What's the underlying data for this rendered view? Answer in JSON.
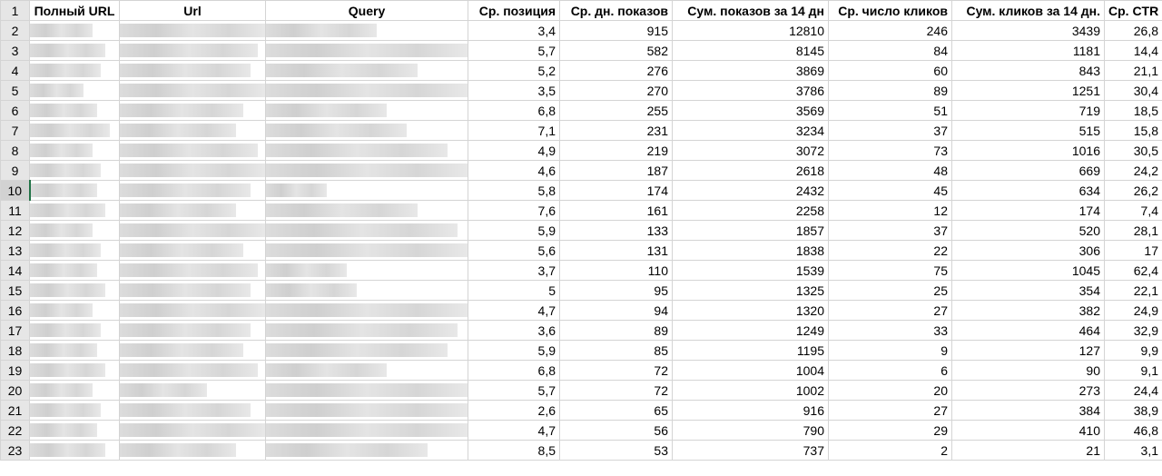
{
  "headers": {
    "row": "1",
    "full_url": "Полный URL",
    "url": "Url",
    "query": "Query",
    "avg_position": "Ср. позиция",
    "avg_daily_impressions": "Ср. дн. показов",
    "sum_impressions_14d": "Сум. показов за 14 дн",
    "avg_clicks": "Ср. число кликов",
    "sum_clicks_14d": "Сум. кликов за 14 дн.",
    "avg_ctr": "Ср. CTR"
  },
  "rows": [
    {
      "n": "2",
      "pos": "3,4",
      "imp": "915",
      "sum_imp": "12810",
      "clicks": "246",
      "sum_clicks": "3439",
      "ctr": "26,8"
    },
    {
      "n": "3",
      "pos": "5,7",
      "imp": "582",
      "sum_imp": "8145",
      "clicks": "84",
      "sum_clicks": "1181",
      "ctr": "14,4"
    },
    {
      "n": "4",
      "pos": "5,2",
      "imp": "276",
      "sum_imp": "3869",
      "clicks": "60",
      "sum_clicks": "843",
      "ctr": "21,1"
    },
    {
      "n": "5",
      "pos": "3,5",
      "imp": "270",
      "sum_imp": "3786",
      "clicks": "89",
      "sum_clicks": "1251",
      "ctr": "30,4"
    },
    {
      "n": "6",
      "pos": "6,8",
      "imp": "255",
      "sum_imp": "3569",
      "clicks": "51",
      "sum_clicks": "719",
      "ctr": "18,5"
    },
    {
      "n": "7",
      "pos": "7,1",
      "imp": "231",
      "sum_imp": "3234",
      "clicks": "37",
      "sum_clicks": "515",
      "ctr": "15,8"
    },
    {
      "n": "8",
      "pos": "4,9",
      "imp": "219",
      "sum_imp": "3072",
      "clicks": "73",
      "sum_clicks": "1016",
      "ctr": "30,5"
    },
    {
      "n": "9",
      "pos": "4,6",
      "imp": "187",
      "sum_imp": "2618",
      "clicks": "48",
      "sum_clicks": "669",
      "ctr": "24,2"
    },
    {
      "n": "10",
      "pos": "5,8",
      "imp": "174",
      "sum_imp": "2432",
      "clicks": "45",
      "sum_clicks": "634",
      "ctr": "26,2"
    },
    {
      "n": "11",
      "pos": "7,6",
      "imp": "161",
      "sum_imp": "2258",
      "clicks": "12",
      "sum_clicks": "174",
      "ctr": "7,4"
    },
    {
      "n": "12",
      "pos": "5,9",
      "imp": "133",
      "sum_imp": "1857",
      "clicks": "37",
      "sum_clicks": "520",
      "ctr": "28,1"
    },
    {
      "n": "13",
      "pos": "5,6",
      "imp": "131",
      "sum_imp": "1838",
      "clicks": "22",
      "sum_clicks": "306",
      "ctr": "17"
    },
    {
      "n": "14",
      "pos": "3,7",
      "imp": "110",
      "sum_imp": "1539",
      "clicks": "75",
      "sum_clicks": "1045",
      "ctr": "62,4"
    },
    {
      "n": "15",
      "pos": "5",
      "imp": "95",
      "sum_imp": "1325",
      "clicks": "25",
      "sum_clicks": "354",
      "ctr": "22,1"
    },
    {
      "n": "16",
      "pos": "4,7",
      "imp": "94",
      "sum_imp": "1320",
      "clicks": "27",
      "sum_clicks": "382",
      "ctr": "24,9"
    },
    {
      "n": "17",
      "pos": "3,6",
      "imp": "89",
      "sum_imp": "1249",
      "clicks": "33",
      "sum_clicks": "464",
      "ctr": "32,9"
    },
    {
      "n": "18",
      "pos": "5,9",
      "imp": "85",
      "sum_imp": "1195",
      "clicks": "9",
      "sum_clicks": "127",
      "ctr": "9,9"
    },
    {
      "n": "19",
      "pos": "6,8",
      "imp": "72",
      "sum_imp": "1004",
      "clicks": "6",
      "sum_clicks": "90",
      "ctr": "9,1"
    },
    {
      "n": "20",
      "pos": "5,7",
      "imp": "72",
      "sum_imp": "1002",
      "clicks": "20",
      "sum_clicks": "273",
      "ctr": "24,4"
    },
    {
      "n": "21",
      "pos": "2,6",
      "imp": "65",
      "sum_imp": "916",
      "clicks": "27",
      "sum_clicks": "384",
      "ctr": "38,9"
    },
    {
      "n": "22",
      "pos": "4,7",
      "imp": "56",
      "sum_imp": "790",
      "clicks": "29",
      "sum_clicks": "410",
      "ctr": "46,8"
    },
    {
      "n": "23",
      "pos": "8,5",
      "imp": "53",
      "sum_imp": "737",
      "clicks": "2",
      "sum_clicks": "21",
      "ctr": "3,1"
    }
  ],
  "active_row": "10",
  "colors": {
    "grid": "#d4d4d4",
    "row_header": "#e6e6e6",
    "active_row_header": "#d2d2d2",
    "selection_accent": "#217346",
    "blur": "#dcdcdc"
  }
}
